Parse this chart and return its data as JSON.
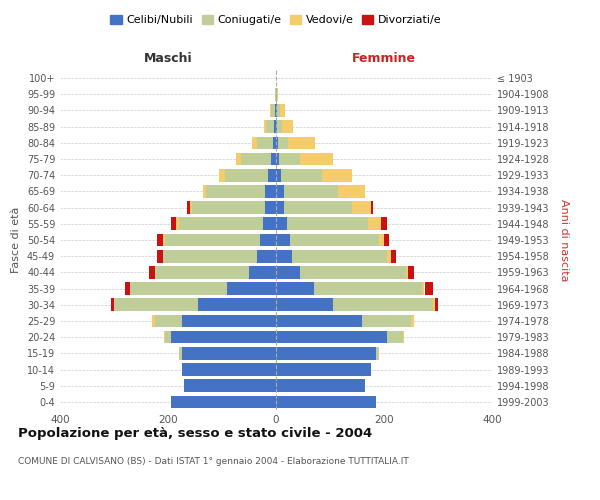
{
  "age_groups": [
    "0-4",
    "5-9",
    "10-14",
    "15-19",
    "20-24",
    "25-29",
    "30-34",
    "35-39",
    "40-44",
    "45-49",
    "50-54",
    "55-59",
    "60-64",
    "65-69",
    "70-74",
    "75-79",
    "80-84",
    "85-89",
    "90-94",
    "95-99",
    "100+"
  ],
  "birth_years": [
    "1999-2003",
    "1994-1998",
    "1989-1993",
    "1984-1988",
    "1979-1983",
    "1974-1978",
    "1969-1973",
    "1964-1968",
    "1959-1963",
    "1954-1958",
    "1949-1953",
    "1944-1948",
    "1939-1943",
    "1934-1938",
    "1929-1933",
    "1924-1928",
    "1919-1923",
    "1914-1918",
    "1909-1913",
    "1904-1908",
    "≤ 1903"
  ],
  "males": {
    "celibi": [
      195,
      170,
      175,
      175,
      195,
      175,
      145,
      90,
      50,
      35,
      30,
      25,
      20,
      20,
      15,
      10,
      5,
      3,
      2,
      0,
      0
    ],
    "coniugati": [
      0,
      0,
      0,
      5,
      10,
      50,
      155,
      180,
      175,
      175,
      175,
      155,
      135,
      110,
      80,
      55,
      30,
      15,
      8,
      2,
      0
    ],
    "vedovi": [
      0,
      0,
      0,
      0,
      2,
      5,
      0,
      0,
      0,
      0,
      5,
      5,
      5,
      5,
      10,
      10,
      10,
      5,
      2,
      0,
      0
    ],
    "divorziati": [
      0,
      0,
      0,
      0,
      0,
      0,
      5,
      10,
      10,
      10,
      10,
      10,
      5,
      0,
      0,
      0,
      0,
      0,
      0,
      0,
      0
    ]
  },
  "females": {
    "nubili": [
      185,
      165,
      175,
      185,
      205,
      160,
      105,
      70,
      45,
      30,
      25,
      20,
      15,
      15,
      10,
      5,
      3,
      2,
      2,
      0,
      0
    ],
    "coniugate": [
      0,
      0,
      0,
      5,
      30,
      90,
      185,
      200,
      195,
      175,
      165,
      150,
      125,
      100,
      75,
      40,
      20,
      10,
      5,
      2,
      0
    ],
    "vedove": [
      0,
      0,
      0,
      0,
      2,
      5,
      5,
      5,
      5,
      8,
      10,
      25,
      35,
      50,
      55,
      60,
      50,
      20,
      10,
      2,
      0
    ],
    "divorziate": [
      0,
      0,
      0,
      0,
      0,
      0,
      5,
      15,
      10,
      10,
      10,
      10,
      5,
      0,
      0,
      0,
      0,
      0,
      0,
      0,
      0
    ]
  },
  "colors": {
    "celibi_nubili": "#4472C4",
    "coniugati": "#BFCE98",
    "vedovi": "#F5CC6B",
    "divorziati": "#CC1111"
  },
  "title": "Popolazione per età, sesso e stato civile - 2004",
  "subtitle": "COMUNE DI CALVISANO (BS) - Dati ISTAT 1° gennaio 2004 - Elaborazione TUTTITALIA.IT",
  "xlabel_left": "Maschi",
  "xlabel_right": "Femmine",
  "ylabel_left": "Fasce di età",
  "ylabel_right": "Anni di nascita",
  "xlim": 400,
  "bg_color": "#ffffff",
  "grid_color": "#cccccc",
  "legend_labels": [
    "Celibi/Nubili",
    "Coniugati/e",
    "Vedovi/e",
    "Divorziati/e"
  ]
}
